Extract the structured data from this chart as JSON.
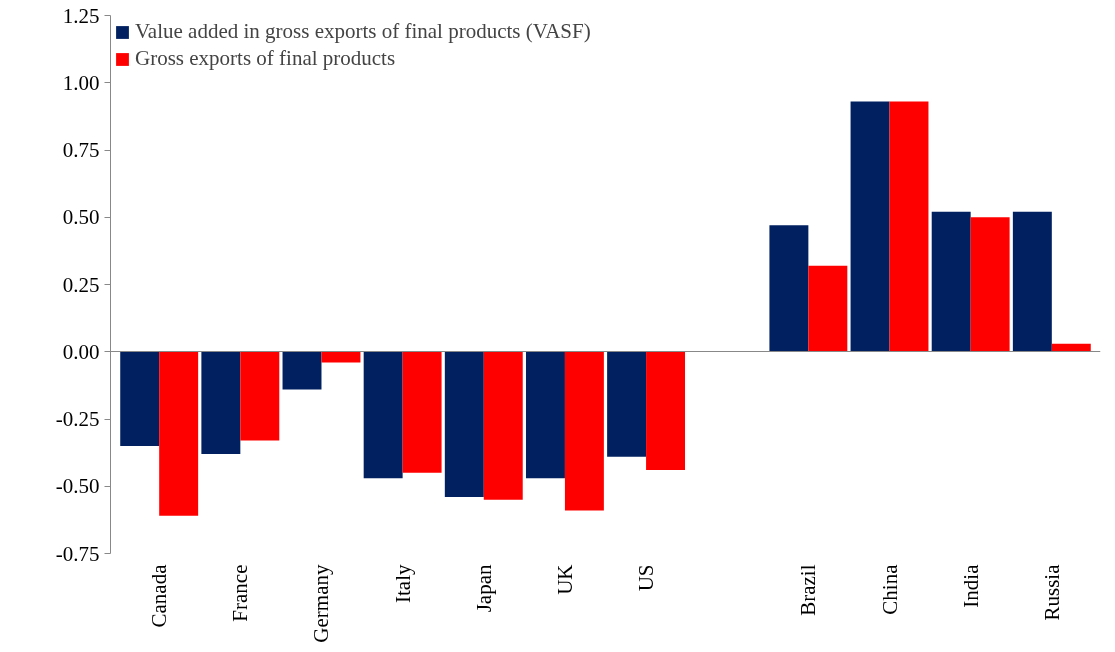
{
  "chart_data": {
    "type": "bar",
    "categories": [
      "Canada",
      "France",
      "Germany",
      "Italy",
      "Japan",
      "UK",
      "US",
      null,
      "Brazil",
      "China",
      "India",
      "Russia"
    ],
    "series": [
      {
        "name": "Value added in gross exports of final products (VASF)",
        "color": "#002060",
        "values": [
          -0.35,
          -0.38,
          -0.14,
          -0.47,
          -0.54,
          -0.47,
          -0.39,
          null,
          0.47,
          0.93,
          0.52,
          0.52
        ]
      },
      {
        "name": "Gross exports of final products",
        "color": "#ff0000",
        "values": [
          -0.61,
          -0.33,
          -0.04,
          -0.45,
          -0.55,
          -0.59,
          -0.44,
          null,
          0.32,
          0.93,
          0.5,
          0.03
        ]
      }
    ],
    "ylim": [
      -0.75,
      1.25
    ],
    "yticks": [
      {
        "value": -0.75,
        "label": "-0.75"
      },
      {
        "value": -0.5,
        "label": "-0.50"
      },
      {
        "value": -0.25,
        "label": "-0.25"
      },
      {
        "value": 0,
        "label": "0.00"
      },
      {
        "value": 0.25,
        "label": "0.25"
      },
      {
        "value": 0.5,
        "label": "0.50"
      },
      {
        "value": 0.75,
        "label": "0.75"
      },
      {
        "value": 1,
        "label": "1.00"
      },
      {
        "value": 1.25,
        "label": "1.25"
      }
    ],
    "legend": "top left"
  }
}
